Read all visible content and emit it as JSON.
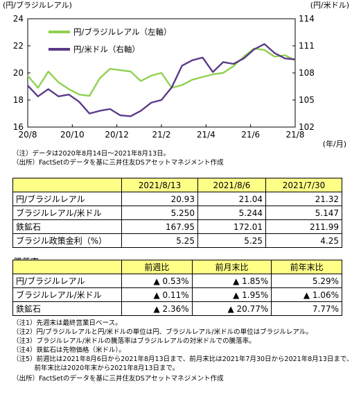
{
  "chart_data": {
    "type": "line",
    "left_axis_title": "(円/ブラジルレアル)",
    "right_axis_title": "(円/米ドル)",
    "x_unit_label": "(年/月)",
    "x_ticks": [
      "20/8",
      "20/10",
      "20/12",
      "21/2",
      "21/4",
      "21/6",
      "21/8"
    ],
    "y_left": {
      "min": 16,
      "max": 24,
      "ticks": [
        "16",
        "18",
        "20",
        "22",
        "24"
      ]
    },
    "y_right": {
      "min": 102,
      "max": 114,
      "ticks": [
        "102",
        "105",
        "108",
        "111",
        "114"
      ]
    },
    "grid": false,
    "legend_position": "top-left",
    "series": [
      {
        "name": "円/ブラジルレアル（左軸）",
        "axis": "left",
        "color": "#8fd14f",
        "x": [
          "2020-08-14",
          "2020-08-28",
          "2020-09-11",
          "2020-09-25",
          "2020-10-09",
          "2020-10-23",
          "2020-11-06",
          "2020-11-20",
          "2020-12-04",
          "2020-12-18",
          "2021-01-01",
          "2021-01-15",
          "2021-01-29",
          "2021-02-12",
          "2021-02-26",
          "2021-03-12",
          "2021-03-26",
          "2021-04-09",
          "2021-04-23",
          "2021-05-07",
          "2021-05-21",
          "2021-06-04",
          "2021-06-18",
          "2021-07-02",
          "2021-07-16",
          "2021-07-30",
          "2021-08-13"
        ],
        "values": [
          19.8,
          18.9,
          20.1,
          19.3,
          18.8,
          18.4,
          18.3,
          19.6,
          20.3,
          20.2,
          20.1,
          19.4,
          19.8,
          20.0,
          18.9,
          19.1,
          19.5,
          19.7,
          19.9,
          20.0,
          20.5,
          21.2,
          21.8,
          21.7,
          21.2,
          21.3,
          20.93
        ]
      },
      {
        "name": "円/米ドル（右軸）",
        "axis": "right",
        "color": "#5a3a8a",
        "x": [
          "2020-08-14",
          "2020-08-28",
          "2020-09-11",
          "2020-09-25",
          "2020-10-09",
          "2020-10-23",
          "2020-11-06",
          "2020-11-20",
          "2020-12-04",
          "2020-12-18",
          "2021-01-01",
          "2021-01-15",
          "2021-01-29",
          "2021-02-12",
          "2021-02-26",
          "2021-03-12",
          "2021-03-26",
          "2021-04-09",
          "2021-04-23",
          "2021-05-07",
          "2021-05-21",
          "2021-06-04",
          "2021-06-18",
          "2021-07-02",
          "2021-07-16",
          "2021-07-30",
          "2021-08-13"
        ],
        "values": [
          106.6,
          105.4,
          106.2,
          105.4,
          105.6,
          104.8,
          103.5,
          103.8,
          104.0,
          103.3,
          103.2,
          103.8,
          104.7,
          105.0,
          106.4,
          108.8,
          109.4,
          109.7,
          108.1,
          109.2,
          109.0,
          109.6,
          110.6,
          111.2,
          110.2,
          109.6,
          109.5
        ]
      }
    ]
  },
  "notes_chart": [
    "（注）データは2020年8月14日～2021年8月13日。",
    "（出所）FactSetのデータを基に三井住友DSアセットマネジメント作成"
  ],
  "table1": {
    "headers": [
      "2021/8/13",
      "2021/8/6",
      "2021/7/30"
    ],
    "rows": [
      {
        "label": "円/ブラジルレアル",
        "values": [
          "20.93",
          "21.04",
          "21.32"
        ]
      },
      {
        "label": "ブラジルレアル/米ドル",
        "values": [
          "5.250",
          "5.244",
          "5.147"
        ]
      },
      {
        "label": "鉄鉱石",
        "values": [
          "167.95",
          "172.01",
          "211.99"
        ]
      },
      {
        "label": "ブラジル政策金利（%）",
        "values": [
          "5.25",
          "5.25",
          "4.25"
        ]
      }
    ]
  },
  "table2": {
    "title": "騰落率",
    "headers": [
      "前週比",
      "前月末比",
      "前年末比"
    ],
    "rows": [
      {
        "label": "円/ブラジルレアル",
        "values": [
          "▲ 0.53%",
          "▲ 1.85%",
          "5.29%"
        ]
      },
      {
        "label": "ブラジルレアル/米ドル",
        "values": [
          "▲ 0.11%",
          "▲ 1.95%",
          "▲ 1.06%"
        ]
      },
      {
        "label": "鉄鉱石",
        "values": [
          "▲ 2.36%",
          "▲ 20.77%",
          "7.77%"
        ]
      }
    ]
  },
  "notes_bottom": [
    "（注1）先週末は最終営業日ベース。",
    "（注2）円/ブラジルレアルと円/米ドルの単位は円、ブラジルレアル/米ドルの単位はブラジルレアル。",
    "（注3）ブラジルレアル/米ドルの騰落率はブラジルレアルの対米ドルでの騰落率。",
    "（注4）鉄鉱石は先物価格（米ドル）。",
    "（注5）前週比は2021年8月6日から2021年8月13日まで、前月末比は2021年7月30日から2021年8月13日まで、",
    "　　　 前年末比は2020年末から2021年8月13日まで。",
    "（出所）FactSetのデータを基に三井住友DSアセットマネジメント作成"
  ]
}
